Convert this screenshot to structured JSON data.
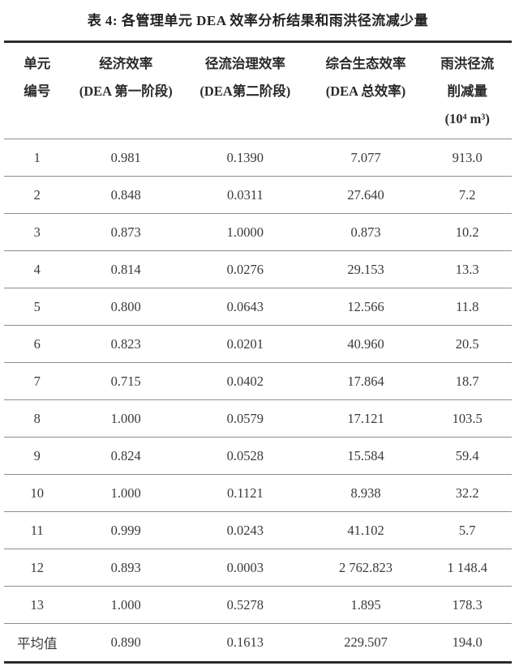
{
  "title": "表 4: 各管理单元 DEA 效率分析结果和雨洪径流减少量",
  "table": {
    "columns": [
      {
        "id": "unit-number",
        "lines": [
          "单元",
          "编号"
        ]
      },
      {
        "id": "economic-efficiency",
        "lines": [
          "经济效率",
          "(DEA 第一阶段)"
        ]
      },
      {
        "id": "runoff-efficiency",
        "lines": [
          "径流治理效率",
          "(DEA第二阶段)"
        ]
      },
      {
        "id": "eco-efficiency",
        "lines": [
          "综合生态效率",
          "(DEA 总效率)"
        ]
      },
      {
        "id": "runoff-reduction",
        "lines": [
          "雨洪径流",
          "削减量",
          "(10⁴ m³)"
        ]
      }
    ],
    "rows": [
      [
        "1",
        "0.981",
        "0.1390",
        "7.077",
        "913.0"
      ],
      [
        "2",
        "0.848",
        "0.0311",
        "27.640",
        "7.2"
      ],
      [
        "3",
        "0.873",
        "1.0000",
        "0.873",
        "10.2"
      ],
      [
        "4",
        "0.814",
        "0.0276",
        "29.153",
        "13.3"
      ],
      [
        "5",
        "0.800",
        "0.0643",
        "12.566",
        "11.8"
      ],
      [
        "6",
        "0.823",
        "0.0201",
        "40.960",
        "20.5"
      ],
      [
        "7",
        "0.715",
        "0.0402",
        "17.864",
        "18.7"
      ],
      [
        "8",
        "1.000",
        "0.0579",
        "17.121",
        "103.5"
      ],
      [
        "9",
        "0.824",
        "0.0528",
        "15.584",
        "59.4"
      ],
      [
        "10",
        "1.000",
        "0.1121",
        "8.938",
        "32.2"
      ],
      [
        "11",
        "0.999",
        "0.0243",
        "41.102",
        "5.7"
      ],
      [
        "12",
        "0.893",
        "0.0003",
        "2 762.823",
        "1 148.4"
      ],
      [
        "13",
        "1.000",
        "0.5278",
        "1.895",
        "178.3"
      ]
    ],
    "summary_row": [
      "平均值",
      "0.890",
      "0.1613",
      "229.507",
      "194.0"
    ]
  },
  "colors": {
    "background": "#ffffff",
    "text": "#333333",
    "rule_heavy": "#2c2c2c",
    "rule_light": "#8d8d8d"
  }
}
